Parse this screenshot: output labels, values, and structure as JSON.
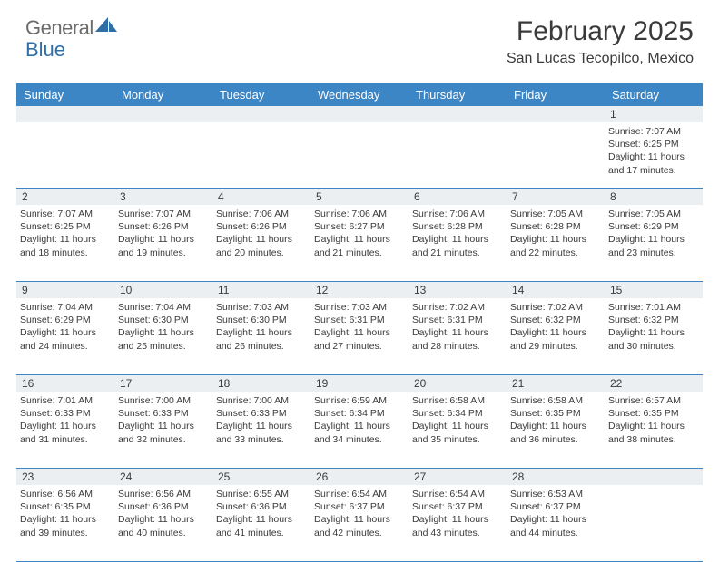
{
  "brand": {
    "part1": "General",
    "part2": "Blue"
  },
  "title": "February 2025",
  "location": "San Lucas Tecopilco, Mexico",
  "colors": {
    "header_bg": "#3d86c6",
    "header_text": "#ffffff",
    "daynum_bg": "#eceff1",
    "text": "#3a3a3a",
    "border": "#3d86c6",
    "brand_gray": "#6b6b6b",
    "brand_blue": "#2f6fa8"
  },
  "day_names": [
    "Sunday",
    "Monday",
    "Tuesday",
    "Wednesday",
    "Thursday",
    "Friday",
    "Saturday"
  ],
  "weeks": [
    {
      "nums": [
        "",
        "",
        "",
        "",
        "",
        "",
        "1"
      ],
      "cells": [
        null,
        null,
        null,
        null,
        null,
        null,
        {
          "sunrise": "Sunrise: 7:07 AM",
          "sunset": "Sunset: 6:25 PM",
          "day1": "Daylight: 11 hours",
          "day2": "and 17 minutes."
        }
      ]
    },
    {
      "nums": [
        "2",
        "3",
        "4",
        "5",
        "6",
        "7",
        "8"
      ],
      "cells": [
        {
          "sunrise": "Sunrise: 7:07 AM",
          "sunset": "Sunset: 6:25 PM",
          "day1": "Daylight: 11 hours",
          "day2": "and 18 minutes."
        },
        {
          "sunrise": "Sunrise: 7:07 AM",
          "sunset": "Sunset: 6:26 PM",
          "day1": "Daylight: 11 hours",
          "day2": "and 19 minutes."
        },
        {
          "sunrise": "Sunrise: 7:06 AM",
          "sunset": "Sunset: 6:26 PM",
          "day1": "Daylight: 11 hours",
          "day2": "and 20 minutes."
        },
        {
          "sunrise": "Sunrise: 7:06 AM",
          "sunset": "Sunset: 6:27 PM",
          "day1": "Daylight: 11 hours",
          "day2": "and 21 minutes."
        },
        {
          "sunrise": "Sunrise: 7:06 AM",
          "sunset": "Sunset: 6:28 PM",
          "day1": "Daylight: 11 hours",
          "day2": "and 21 minutes."
        },
        {
          "sunrise": "Sunrise: 7:05 AM",
          "sunset": "Sunset: 6:28 PM",
          "day1": "Daylight: 11 hours",
          "day2": "and 22 minutes."
        },
        {
          "sunrise": "Sunrise: 7:05 AM",
          "sunset": "Sunset: 6:29 PM",
          "day1": "Daylight: 11 hours",
          "day2": "and 23 minutes."
        }
      ]
    },
    {
      "nums": [
        "9",
        "10",
        "11",
        "12",
        "13",
        "14",
        "15"
      ],
      "cells": [
        {
          "sunrise": "Sunrise: 7:04 AM",
          "sunset": "Sunset: 6:29 PM",
          "day1": "Daylight: 11 hours",
          "day2": "and 24 minutes."
        },
        {
          "sunrise": "Sunrise: 7:04 AM",
          "sunset": "Sunset: 6:30 PM",
          "day1": "Daylight: 11 hours",
          "day2": "and 25 minutes."
        },
        {
          "sunrise": "Sunrise: 7:03 AM",
          "sunset": "Sunset: 6:30 PM",
          "day1": "Daylight: 11 hours",
          "day2": "and 26 minutes."
        },
        {
          "sunrise": "Sunrise: 7:03 AM",
          "sunset": "Sunset: 6:31 PM",
          "day1": "Daylight: 11 hours",
          "day2": "and 27 minutes."
        },
        {
          "sunrise": "Sunrise: 7:02 AM",
          "sunset": "Sunset: 6:31 PM",
          "day1": "Daylight: 11 hours",
          "day2": "and 28 minutes."
        },
        {
          "sunrise": "Sunrise: 7:02 AM",
          "sunset": "Sunset: 6:32 PM",
          "day1": "Daylight: 11 hours",
          "day2": "and 29 minutes."
        },
        {
          "sunrise": "Sunrise: 7:01 AM",
          "sunset": "Sunset: 6:32 PM",
          "day1": "Daylight: 11 hours",
          "day2": "and 30 minutes."
        }
      ]
    },
    {
      "nums": [
        "16",
        "17",
        "18",
        "19",
        "20",
        "21",
        "22"
      ],
      "cells": [
        {
          "sunrise": "Sunrise: 7:01 AM",
          "sunset": "Sunset: 6:33 PM",
          "day1": "Daylight: 11 hours",
          "day2": "and 31 minutes."
        },
        {
          "sunrise": "Sunrise: 7:00 AM",
          "sunset": "Sunset: 6:33 PM",
          "day1": "Daylight: 11 hours",
          "day2": "and 32 minutes."
        },
        {
          "sunrise": "Sunrise: 7:00 AM",
          "sunset": "Sunset: 6:33 PM",
          "day1": "Daylight: 11 hours",
          "day2": "and 33 minutes."
        },
        {
          "sunrise": "Sunrise: 6:59 AM",
          "sunset": "Sunset: 6:34 PM",
          "day1": "Daylight: 11 hours",
          "day2": "and 34 minutes."
        },
        {
          "sunrise": "Sunrise: 6:58 AM",
          "sunset": "Sunset: 6:34 PM",
          "day1": "Daylight: 11 hours",
          "day2": "and 35 minutes."
        },
        {
          "sunrise": "Sunrise: 6:58 AM",
          "sunset": "Sunset: 6:35 PM",
          "day1": "Daylight: 11 hours",
          "day2": "and 36 minutes."
        },
        {
          "sunrise": "Sunrise: 6:57 AM",
          "sunset": "Sunset: 6:35 PM",
          "day1": "Daylight: 11 hours",
          "day2": "and 38 minutes."
        }
      ]
    },
    {
      "nums": [
        "23",
        "24",
        "25",
        "26",
        "27",
        "28",
        ""
      ],
      "cells": [
        {
          "sunrise": "Sunrise: 6:56 AM",
          "sunset": "Sunset: 6:35 PM",
          "day1": "Daylight: 11 hours",
          "day2": "and 39 minutes."
        },
        {
          "sunrise": "Sunrise: 6:56 AM",
          "sunset": "Sunset: 6:36 PM",
          "day1": "Daylight: 11 hours",
          "day2": "and 40 minutes."
        },
        {
          "sunrise": "Sunrise: 6:55 AM",
          "sunset": "Sunset: 6:36 PM",
          "day1": "Daylight: 11 hours",
          "day2": "and 41 minutes."
        },
        {
          "sunrise": "Sunrise: 6:54 AM",
          "sunset": "Sunset: 6:37 PM",
          "day1": "Daylight: 11 hours",
          "day2": "and 42 minutes."
        },
        {
          "sunrise": "Sunrise: 6:54 AM",
          "sunset": "Sunset: 6:37 PM",
          "day1": "Daylight: 11 hours",
          "day2": "and 43 minutes."
        },
        {
          "sunrise": "Sunrise: 6:53 AM",
          "sunset": "Sunset: 6:37 PM",
          "day1": "Daylight: 11 hours",
          "day2": "and 44 minutes."
        },
        null
      ]
    }
  ]
}
